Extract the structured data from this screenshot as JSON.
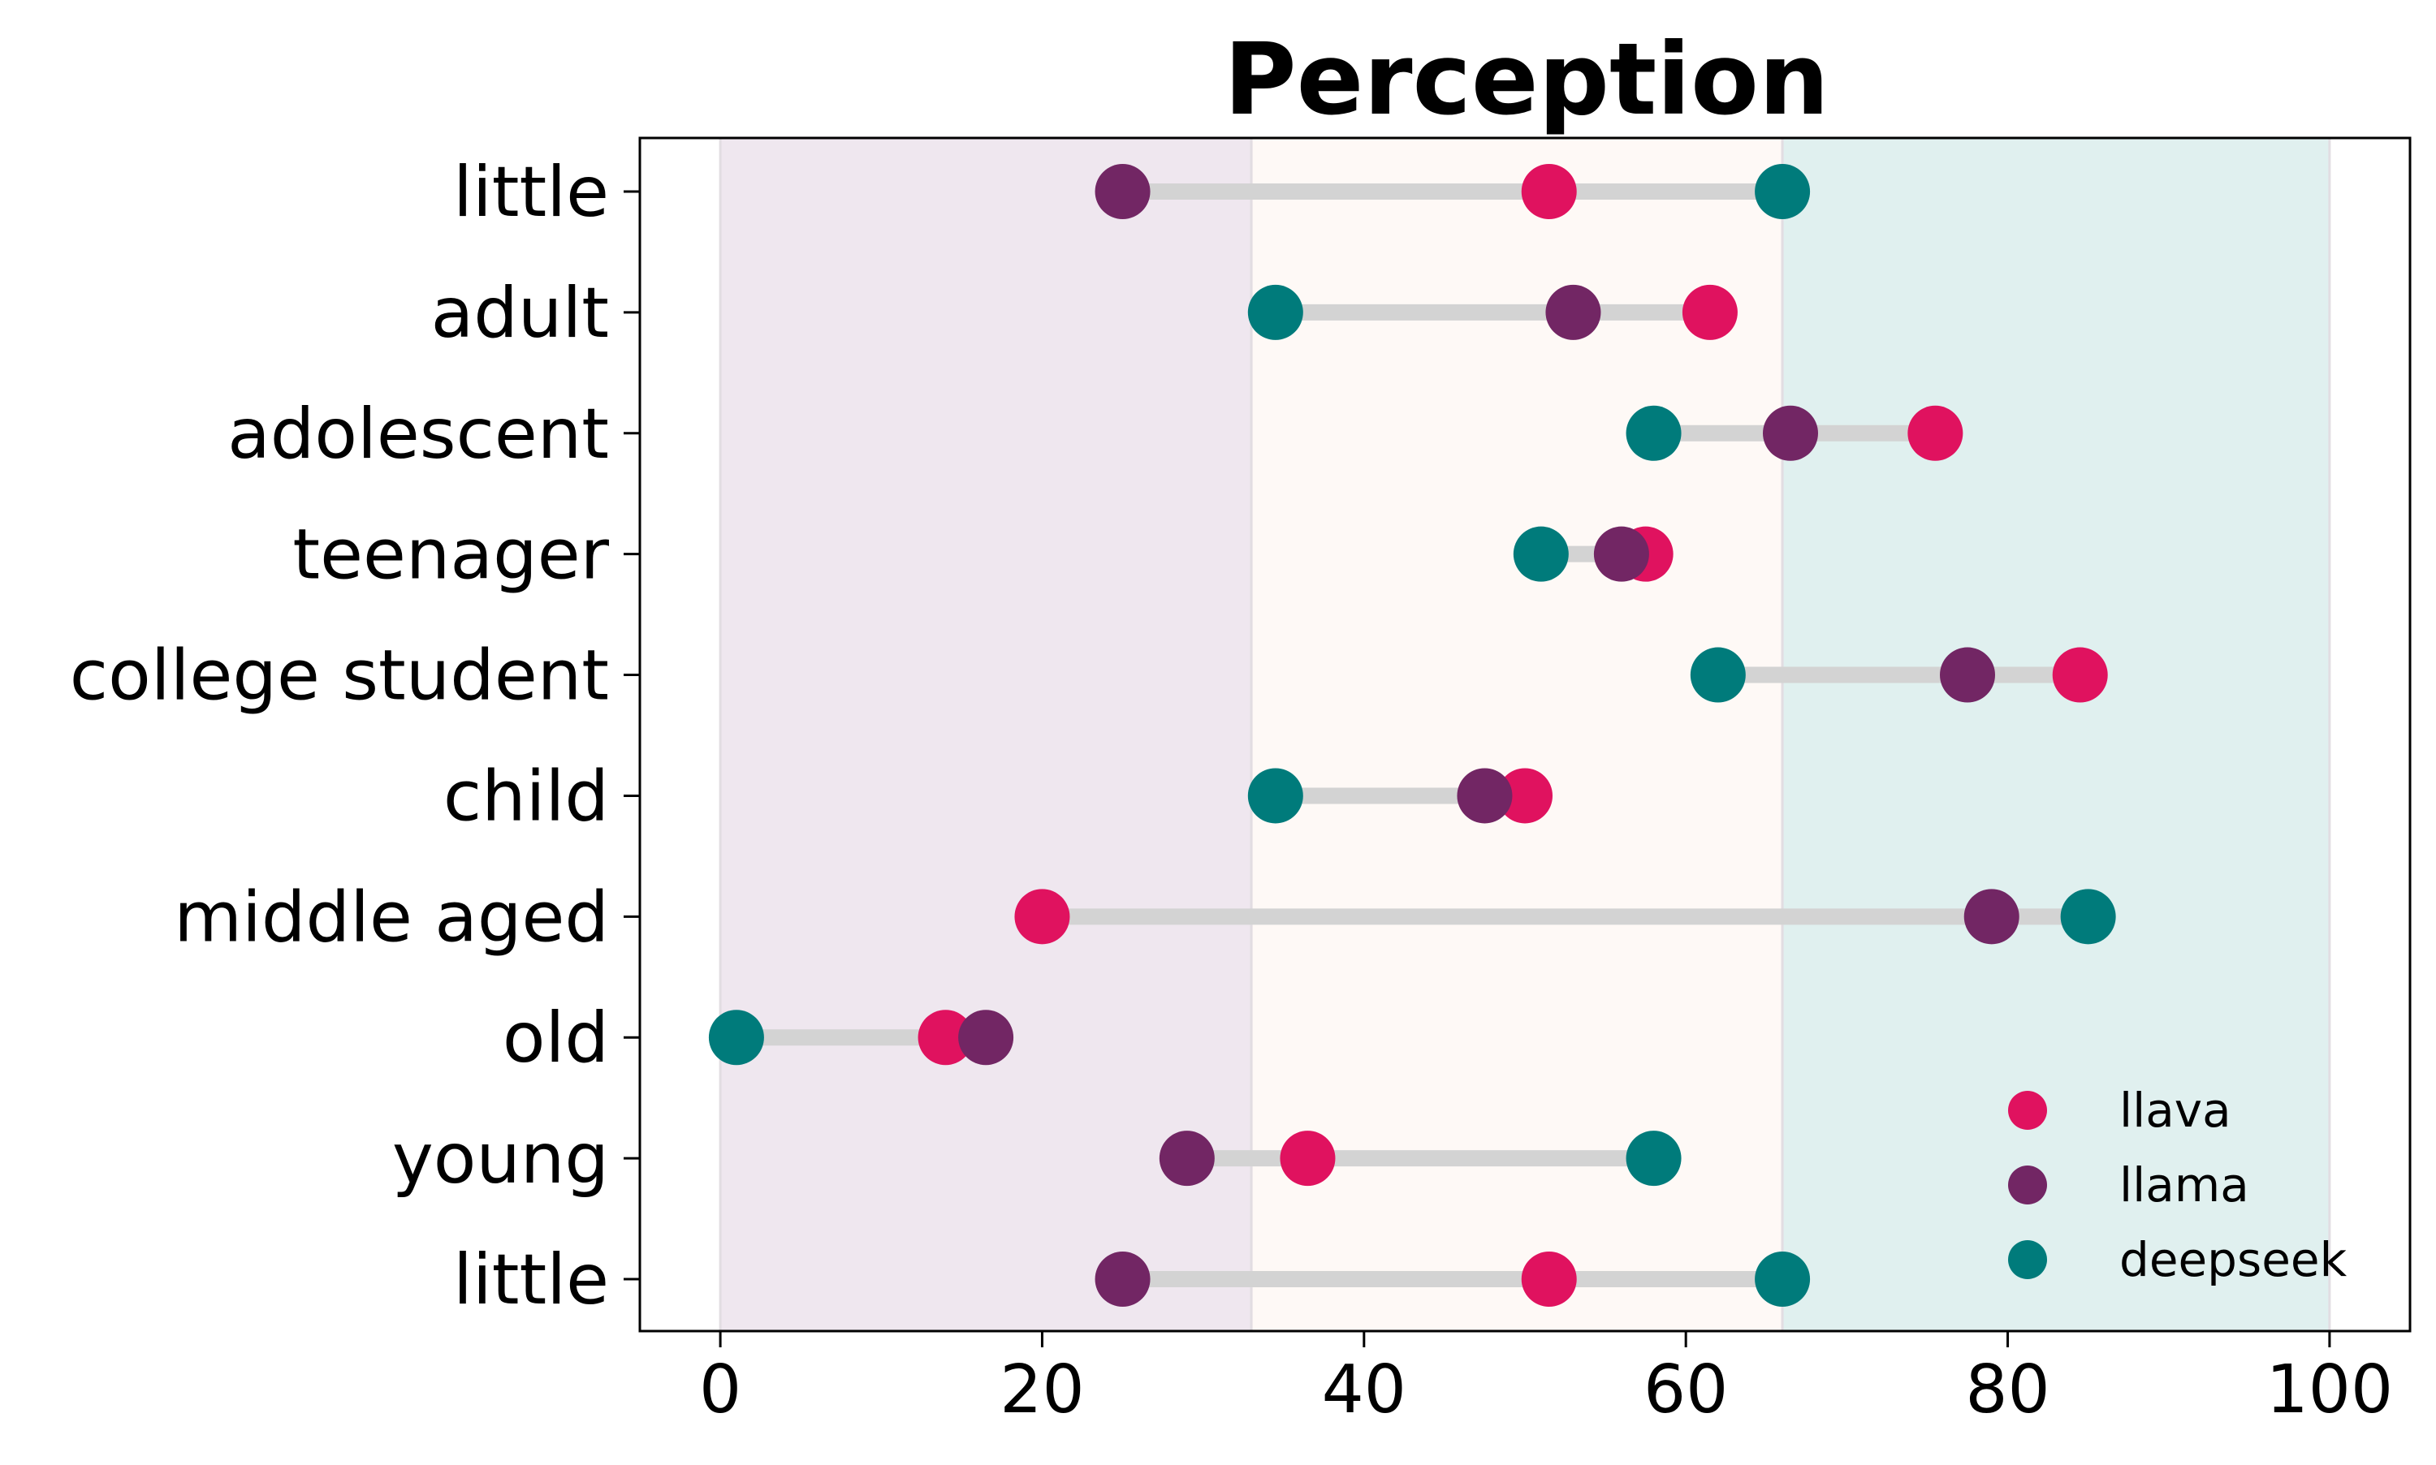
{
  "chart_data": {
    "type": "scatter",
    "title": "Perception",
    "xlabel": "",
    "ylabel": "",
    "xlim": [
      -5,
      105
    ],
    "xticks": [
      0,
      20,
      40,
      60,
      80,
      100
    ],
    "grid": false,
    "legend_position": "bottom-right",
    "bands": [
      {
        "from": 0,
        "to": 33,
        "color": "#efe7ef"
      },
      {
        "from": 33,
        "to": 66,
        "color": "#fef9f6"
      },
      {
        "from": 66,
        "to": 100,
        "color": "#e0f0ef"
      }
    ],
    "categories": [
      "little",
      "adult",
      "adolescent",
      "teenager",
      "college student",
      "child",
      "middle aged",
      "old",
      "young",
      "little"
    ],
    "connector_color": "#d3d3d3",
    "series": [
      {
        "name": "llava",
        "color": "#e0125f",
        "values": [
          51.5,
          61.5,
          75.5,
          57.5,
          84.5,
          50,
          20,
          14,
          36.5,
          51.5
        ]
      },
      {
        "name": "llama",
        "color": "#722664",
        "values": [
          25,
          53,
          66.5,
          56,
          77.5,
          47.5,
          79,
          16.5,
          29,
          25
        ]
      },
      {
        "name": "deepseek",
        "color": "#007b7b",
        "values": [
          66,
          34.5,
          58,
          51,
          62,
          34.5,
          85,
          1,
          58,
          66
        ]
      }
    ]
  }
}
